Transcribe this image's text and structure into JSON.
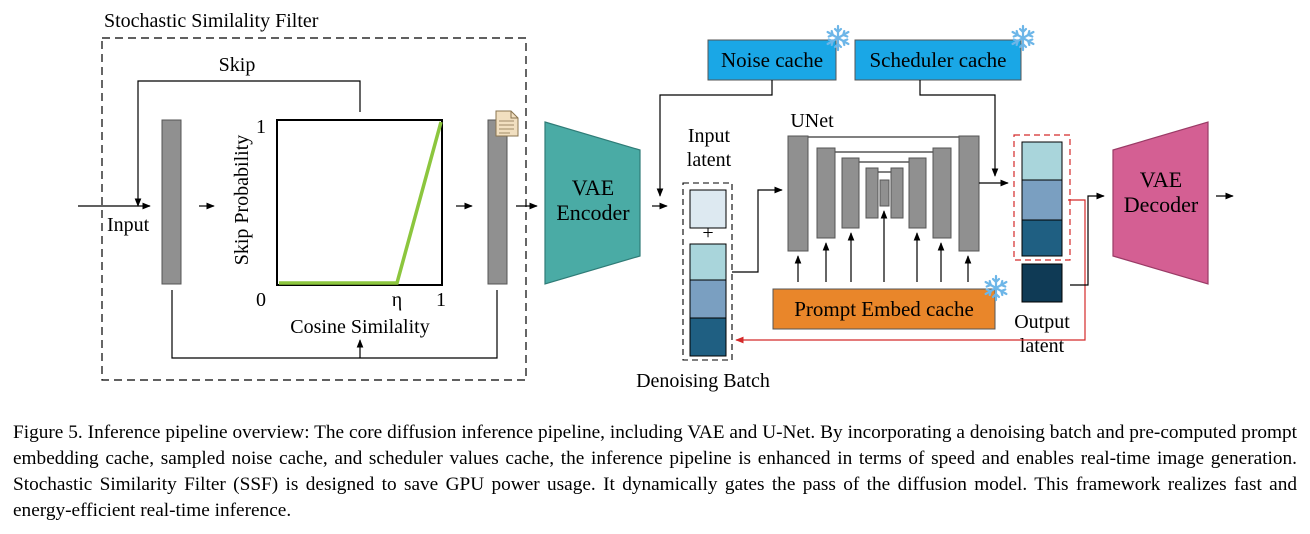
{
  "ssf": {
    "title": "Stochastic Similality Filter",
    "skip_label": "Skip",
    "input_label": "Input",
    "y_axis_label": "Skip Probability",
    "x_axis_label": "Cosine Similality",
    "tick_y_top": "1",
    "tick_origin": "0",
    "tick_eta": "η",
    "tick_x_end": "1"
  },
  "vae_encoder": {
    "line1": "VAE",
    "line2": "Encoder"
  },
  "vae_decoder": {
    "line1": "VAE",
    "line2": "Decoder"
  },
  "noise_cache": "Noise cache",
  "scheduler_cache": "Scheduler cache",
  "prompt_embed_cache": "Prompt Embed cache",
  "input_latent": {
    "line1": "Input",
    "line2": "latent"
  },
  "output_latent": {
    "line1": "Output",
    "line2": "latent"
  },
  "unet_label": "UNet",
  "plus_sign": "+",
  "denoising_batch": "Denoising Batch",
  "colors": {
    "cache_blue": "#1aa7e6",
    "prompt_orange": "#e9862a",
    "encoder_teal": "#4aaba5",
    "decoder_pink": "#d45f93",
    "curve_green": "#8cc63e",
    "feedback_red": "#d42a2a",
    "latent_1": "#a9d5db",
    "latent_2": "#7a9fc1",
    "latent_3": "#1f5f82",
    "latent_out": "#0f3a55",
    "input_latent": "#dde9f1"
  },
  "caption": "Figure 5. Inference pipeline overview: The core diffusion inference pipeline, including VAE and U-Net. By incorporating a denoising batch and pre-computed prompt embedding cache, sampled noise cache, and scheduler values cache, the inference pipeline is enhanced in terms of speed and enables real-time image generation. Stochastic Similarity Filter (SSF) is designed to save GPU power usage. It dynamically gates the pass of the diffusion model. This framework realizes fast and energy-efficient real-time inference."
}
